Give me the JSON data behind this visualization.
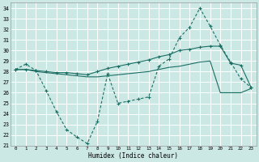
{
  "xlabel": "Humidex (Indice chaleur)",
  "background_color": "#cce8e4",
  "grid_color": "#ffffff",
  "line_color": "#1a6e64",
  "xlim": [
    -0.5,
    23.5
  ],
  "ylim": [
    21,
    34.5
  ],
  "yticks": [
    21,
    22,
    23,
    24,
    25,
    26,
    27,
    28,
    29,
    30,
    31,
    32,
    33,
    34
  ],
  "xticks": [
    0,
    1,
    2,
    3,
    4,
    5,
    6,
    7,
    8,
    9,
    10,
    11,
    12,
    13,
    14,
    15,
    16,
    17,
    18,
    19,
    20,
    21,
    22,
    23
  ],
  "series1_x": [
    0,
    1,
    2,
    3,
    4,
    5,
    6,
    7,
    8,
    9,
    10,
    11,
    12,
    13,
    14,
    15,
    16,
    17,
    18,
    19,
    20,
    21,
    22,
    23
  ],
  "series1_y": [
    28.2,
    28.7,
    28.1,
    26.2,
    24.2,
    22.5,
    21.8,
    21.2,
    23.3,
    27.8,
    25.0,
    25.2,
    25.4,
    25.6,
    28.5,
    29.2,
    31.2,
    32.2,
    34.0,
    32.3,
    30.5,
    28.9,
    27.3,
    26.5
  ],
  "series2_x": [
    0,
    1,
    2,
    3,
    4,
    5,
    6,
    7,
    8,
    9,
    10,
    11,
    12,
    13,
    14,
    15,
    16,
    17,
    18,
    19,
    20,
    21,
    22,
    23
  ],
  "series2_y": [
    28.2,
    28.2,
    28.1,
    28.0,
    27.9,
    27.9,
    27.8,
    27.7,
    28.0,
    28.3,
    28.5,
    28.7,
    28.9,
    29.1,
    29.4,
    29.6,
    30.0,
    30.1,
    30.3,
    30.4,
    30.4,
    28.8,
    28.6,
    26.5
  ],
  "series3_x": [
    0,
    1,
    2,
    3,
    4,
    5,
    6,
    7,
    8,
    9,
    10,
    11,
    12,
    13,
    14,
    15,
    16,
    17,
    18,
    19,
    20,
    21,
    22,
    23
  ],
  "series3_y": [
    28.2,
    28.2,
    28.0,
    27.9,
    27.8,
    27.7,
    27.6,
    27.5,
    27.5,
    27.6,
    27.7,
    27.8,
    27.9,
    28.0,
    28.2,
    28.4,
    28.5,
    28.7,
    28.9,
    29.0,
    26.0,
    26.0,
    26.0,
    26.4
  ]
}
